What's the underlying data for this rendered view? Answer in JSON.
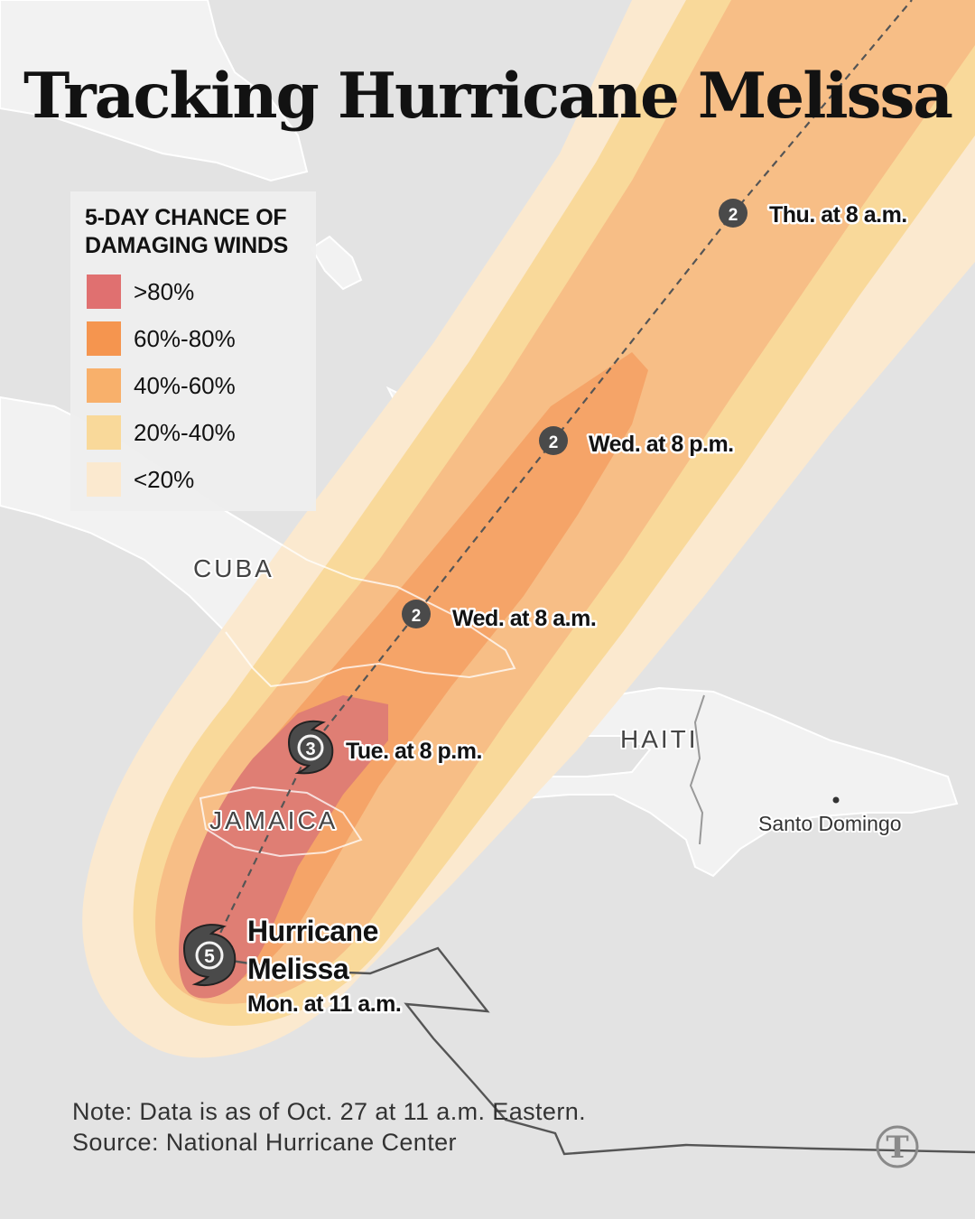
{
  "title": "Tracking Hurricane Melissa",
  "legend": {
    "title_line1": "5-DAY CHANCE OF",
    "title_line2": "DAMAGING WINDS",
    "items": [
      {
        "label": ">80%",
        "color": "#e07070"
      },
      {
        "label": "60%-80%",
        "color": "#f5954f"
      },
      {
        "label": "40%-60%",
        "color": "#f8b06b"
      },
      {
        "label": "20%-40%",
        "color": "#f9d99a"
      },
      {
        "label": "<20%",
        "color": "#fbe9cf"
      }
    ]
  },
  "map": {
    "places": {
      "cuba": "CUBA",
      "haiti": "HAITI",
      "jamaica": "JAMAICA",
      "santo_domingo": "Santo Domingo"
    },
    "forecast_points": [
      {
        "category": "5",
        "label_line1": "Hurricane",
        "label_line2": "Melissa",
        "label_line3": "Mon. at 11 a.m."
      },
      {
        "category": "3",
        "label": "Tue. at 8 p.m."
      },
      {
        "category": "2",
        "label": "Wed. at 8 a.m."
      },
      {
        "category": "2",
        "label": "Wed. at 8 p.m."
      },
      {
        "category": "2",
        "label": "Thu. at 8 a.m."
      }
    ],
    "colors": {
      "background": "#e3e3e3",
      "land": "#f4f4f4",
      "track": "#555555",
      "marker": "#4a4a4a"
    }
  },
  "note": "Note: Data is as of Oct. 27 at 11 a.m. Eastern.",
  "source": "Source: National Hurricane Center",
  "logo": {
    "icon": "nyt-logo-icon",
    "text": "T"
  }
}
